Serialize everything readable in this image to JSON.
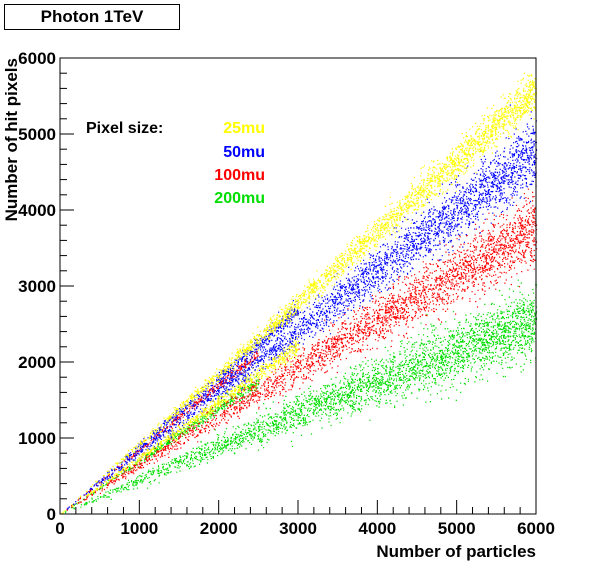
{
  "chart_data": {
    "type": "scatter",
    "title": "Photon 1TeV",
    "xlabel": "Number of particles",
    "ylabel": "Number of hit pixels",
    "xlim": [
      0,
      6000
    ],
    "ylim": [
      0,
      6000
    ],
    "x_ticks": [
      "0",
      "1000",
      "2000",
      "3000",
      "4000",
      "5000",
      "6000"
    ],
    "y_ticks": [
      "0",
      "1000",
      "2000",
      "3000",
      "4000",
      "5000",
      "6000"
    ],
    "legend_title": "Pixel size:",
    "legend_placement": "top-left",
    "grid": false,
    "series": [
      {
        "name": "25mu",
        "color": "#ffff00",
        "bands": [
          {
            "x_range": [
              0,
              6000
            ],
            "slope": 0.93,
            "curvature": 0.0,
            "spread": 0.025,
            "count": 2600
          },
          {
            "x_range": [
              0,
              3000
            ],
            "slope": 0.74,
            "curvature": 0.0,
            "spread": 0.03,
            "count": 700
          }
        ]
      },
      {
        "name": "50mu",
        "color": "#0000ff",
        "bands": [
          {
            "x_range": [
              0,
              6000
            ],
            "slope": 0.82,
            "curvature": 0.03,
            "spread": 0.045,
            "count": 2800
          },
          {
            "x_range": [
              0,
              3000
            ],
            "slope": 0.9,
            "curvature": 0.0,
            "spread": 0.02,
            "count": 500
          }
        ]
      },
      {
        "name": "100mu",
        "color": "#ff0000",
        "bands": [
          {
            "x_range": [
              0,
              6000
            ],
            "slope": 0.66,
            "curvature": 0.05,
            "spread": 0.06,
            "count": 2800
          },
          {
            "x_range": [
              0,
              2500
            ],
            "slope": 0.85,
            "curvature": 0.0,
            "spread": 0.02,
            "count": 400
          }
        ]
      },
      {
        "name": "200mu",
        "color": "#00dd00",
        "bands": [
          {
            "x_range": [
              0,
              6000
            ],
            "slope": 0.46,
            "curvature": 0.08,
            "spread": 0.09,
            "count": 3200
          },
          {
            "x_range": [
              0,
              2500
            ],
            "slope": 0.7,
            "curvature": 0.0,
            "spread": 0.03,
            "count": 500
          }
        ]
      }
    ]
  }
}
